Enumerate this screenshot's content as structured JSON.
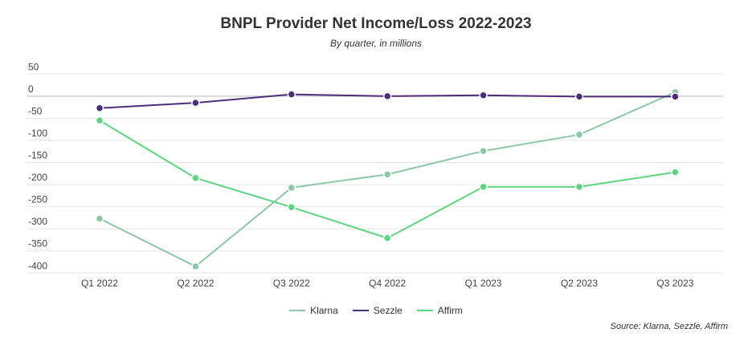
{
  "chart_data": {
    "type": "line",
    "title": "BNPL Provider Net Income/Loss 2022-2023",
    "subtitle": "By quarter, in millions",
    "source": "Source: Klarna, Sezzle, Affirm",
    "categories": [
      "Q1 2022",
      "Q2 2022",
      "Q3 2022",
      "Q4 2022",
      "Q1 2023",
      "Q2 2023",
      "Q3 2023"
    ],
    "ylim": [
      -400,
      50
    ],
    "yticks": [
      50,
      0,
      -50,
      -100,
      -150,
      -200,
      -250,
      -300,
      -350,
      -400
    ],
    "grid": true,
    "legend": "bottom",
    "series": [
      {
        "name": "Klarna",
        "color": "#8cc7a6",
        "values": [
          -277,
          -385,
          -207,
          -177,
          -124,
          -87,
          9
        ]
      },
      {
        "name": "Sezzle",
        "color": "#4b2e7a",
        "values": [
          -27,
          -15,
          4,
          0,
          2,
          -1,
          -1
        ]
      },
      {
        "name": "Affirm",
        "color": "#5fd47e",
        "values": [
          -55,
          -185,
          -251,
          -321,
          -205,
          -205,
          -172
        ]
      }
    ]
  }
}
